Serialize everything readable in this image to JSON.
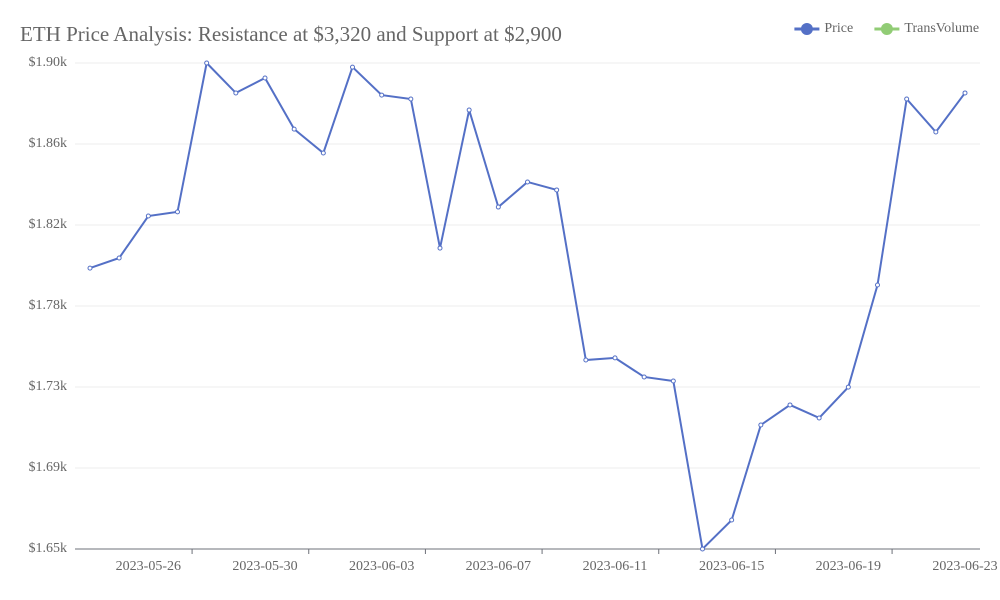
{
  "chart_data": {
    "type": "line",
    "title": "ETH Price Analysis: Resistance at $3,320 and Support at $2,900",
    "categories": [
      null,
      null,
      "2023-05-26",
      null,
      null,
      null,
      "2023-05-30",
      null,
      null,
      null,
      "2023-06-03",
      null,
      null,
      null,
      "2023-06-07",
      null,
      null,
      null,
      "2023-06-11",
      null,
      null,
      null,
      "2023-06-15",
      null,
      null,
      null,
      "2023-06-19",
      null,
      null,
      null,
      "2023-06-23"
    ],
    "series": [
      {
        "name": "Price",
        "color": "#5470c6",
        "values": [
          1794.5,
          1799.7,
          1821.3,
          1823.4,
          1900,
          1884.6,
          1892.3,
          1866.0,
          1853.7,
          1897.9,
          1883.5,
          1881.5,
          1804.8,
          1875.8,
          1825.9,
          1838.8,
          1834.7,
          1747.2,
          1748.3,
          1738.5,
          1736.4,
          1650,
          1664.9,
          1713.8,
          1724.1,
          1717.4,
          1733.3,
          1785.8,
          1881.5,
          1864.5,
          1884.6
        ]
      },
      {
        "name": "TransVolume",
        "color": "#91cc75",
        "values": [
          null,
          null,
          null,
          null,
          null,
          null,
          null,
          null,
          null,
          null,
          null,
          null,
          null,
          null,
          null,
          null,
          null,
          null,
          null,
          null,
          null,
          null,
          null,
          null,
          null,
          null,
          null,
          null,
          null,
          null,
          null
        ]
      }
    ],
    "ylim": [
      1650,
      1900
    ],
    "yticks": [
      {
        "value": 1650,
        "label": "$1.65k"
      },
      {
        "value": 1691.67,
        "label": "$1.69k"
      },
      {
        "value": 1733.33,
        "label": "$1.73k"
      },
      {
        "value": 1775,
        "label": "$1.78k"
      },
      {
        "value": 1816.67,
        "label": "$1.82k"
      },
      {
        "value": 1858.33,
        "label": "$1.86k"
      },
      {
        "value": 1900,
        "label": "$1.90k"
      }
    ],
    "grid": true,
    "legend": "top-right"
  }
}
